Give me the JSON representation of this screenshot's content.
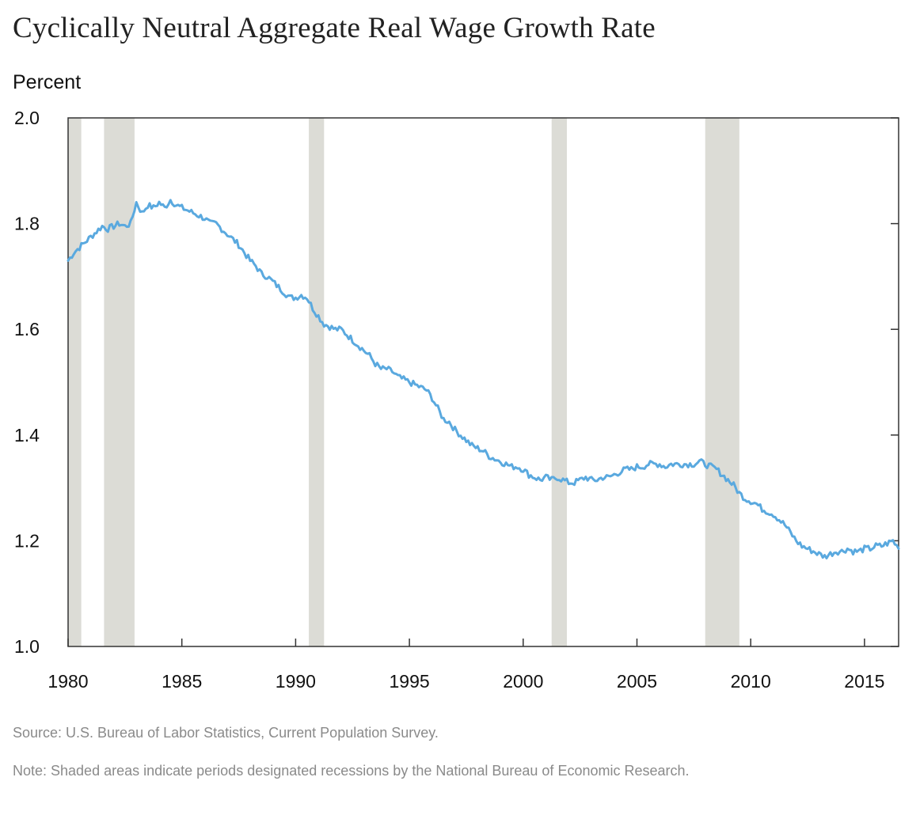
{
  "chart_data": {
    "type": "line",
    "title": "Cyclically Neutral Aggregate Real Wage Growth Rate",
    "ylabel": "Percent",
    "xlim": [
      1980,
      2016.5
    ],
    "ylim": [
      1.0,
      2.0
    ],
    "yticks": [
      "2.0",
      "1.8",
      "1.6",
      "1.4",
      "1.2",
      "1.0"
    ],
    "xticks": [
      "1980",
      "1985",
      "1990",
      "1995",
      "2000",
      "2005",
      "2010",
      "2015"
    ],
    "grid": false,
    "line_color": "#5aa9df",
    "recession_color": "#dcdcd6",
    "recessions": [
      [
        1980.0,
        1980.58
      ],
      [
        1981.58,
        1982.92
      ],
      [
        1990.58,
        1991.25
      ],
      [
        2001.25,
        2001.92
      ],
      [
        2008.0,
        2009.5
      ]
    ],
    "series": [
      {
        "x": [
          1980.0,
          1980.25,
          1980.5,
          1980.75,
          1981.0,
          1981.25,
          1981.5,
          1981.75,
          1982.0,
          1982.25,
          1982.5,
          1982.75,
          1983.0,
          1983.25,
          1983.5,
          1983.75,
          1984.0,
          1984.25,
          1984.5,
          1984.75,
          1985.0,
          1985.25,
          1985.5,
          1985.75,
          1986.0,
          1986.25,
          1986.5,
          1986.75,
          1987.0,
          1987.25,
          1987.5,
          1987.75,
          1988.0,
          1988.25,
          1988.5,
          1988.75,
          1989.0,
          1989.25,
          1989.5,
          1989.75,
          1990.0,
          1990.25,
          1990.5,
          1990.75,
          1991.0,
          1991.25,
          1991.5,
          1991.75,
          1992.0,
          1992.25,
          1992.5,
          1992.75,
          1993.0,
          1993.25,
          1993.5,
          1993.75,
          1994.0,
          1994.25,
          1994.5,
          1994.75,
          1995.0,
          1995.25,
          1995.5,
          1995.75,
          1996.0,
          1996.25,
          1996.5,
          1996.75,
          1997.0,
          1997.25,
          1997.5,
          1997.75,
          1998.0,
          1998.25,
          1998.5,
          1998.75,
          1999.0,
          1999.25,
          1999.5,
          1999.75,
          2000.0,
          2000.25,
          2000.5,
          2000.75,
          2001.0,
          2001.25,
          2001.5,
          2001.75,
          2002.0,
          2002.25,
          2002.5,
          2002.75,
          2003.0,
          2003.25,
          2003.5,
          2003.75,
          2004.0,
          2004.25,
          2004.5,
          2004.75,
          2005.0,
          2005.25,
          2005.5,
          2005.75,
          2006.0,
          2006.25,
          2006.5,
          2006.75,
          2007.0,
          2007.25,
          2007.5,
          2007.75,
          2008.0,
          2008.25,
          2008.5,
          2008.75,
          2009.0,
          2009.25,
          2009.5,
          2009.75,
          2010.0,
          2010.25,
          2010.5,
          2010.75,
          2011.0,
          2011.25,
          2011.5,
          2011.75,
          2012.0,
          2012.25,
          2012.5,
          2012.75,
          2013.0,
          2013.25,
          2013.5,
          2013.75,
          2014.0,
          2014.25,
          2014.5,
          2014.75,
          2015.0,
          2015.25,
          2015.5,
          2015.75,
          2016.0,
          2016.25,
          2016.5
        ],
        "y": [
          1.73,
          1.745,
          1.755,
          1.765,
          1.775,
          1.785,
          1.795,
          1.79,
          1.795,
          1.8,
          1.795,
          1.8,
          1.84,
          1.82,
          1.835,
          1.83,
          1.84,
          1.83,
          1.845,
          1.835,
          1.83,
          1.825,
          1.82,
          1.815,
          1.81,
          1.8,
          1.8,
          1.79,
          1.78,
          1.77,
          1.76,
          1.745,
          1.73,
          1.72,
          1.705,
          1.7,
          1.69,
          1.68,
          1.67,
          1.66,
          1.66,
          1.665,
          1.66,
          1.64,
          1.625,
          1.61,
          1.605,
          1.6,
          1.6,
          1.59,
          1.58,
          1.57,
          1.56,
          1.55,
          1.535,
          1.525,
          1.525,
          1.52,
          1.51,
          1.505,
          1.5,
          1.495,
          1.49,
          1.485,
          1.47,
          1.45,
          1.43,
          1.425,
          1.41,
          1.4,
          1.39,
          1.38,
          1.375,
          1.37,
          1.36,
          1.355,
          1.35,
          1.345,
          1.34,
          1.34,
          1.335,
          1.325,
          1.32,
          1.315,
          1.32,
          1.315,
          1.32,
          1.315,
          1.31,
          1.31,
          1.315,
          1.32,
          1.315,
          1.315,
          1.32,
          1.32,
          1.325,
          1.33,
          1.335,
          1.335,
          1.34,
          1.34,
          1.345,
          1.345,
          1.345,
          1.34,
          1.345,
          1.345,
          1.345,
          1.345,
          1.345,
          1.35,
          1.345,
          1.34,
          1.335,
          1.325,
          1.315,
          1.305,
          1.29,
          1.28,
          1.275,
          1.27,
          1.26,
          1.255,
          1.25,
          1.24,
          1.23,
          1.215,
          1.2,
          1.19,
          1.185,
          1.18,
          1.175,
          1.17,
          1.175,
          1.18,
          1.18,
          1.185,
          1.18,
          1.18,
          1.185,
          1.185,
          1.19,
          1.19,
          1.195,
          1.2,
          1.185
        ]
      }
    ]
  },
  "footer": {
    "source": "Source: U.S. Bureau of Labor Statistics, Current Population Survey.",
    "note": "Note: Shaded areas indicate periods designated recessions by the National Bureau of Economic Research."
  }
}
